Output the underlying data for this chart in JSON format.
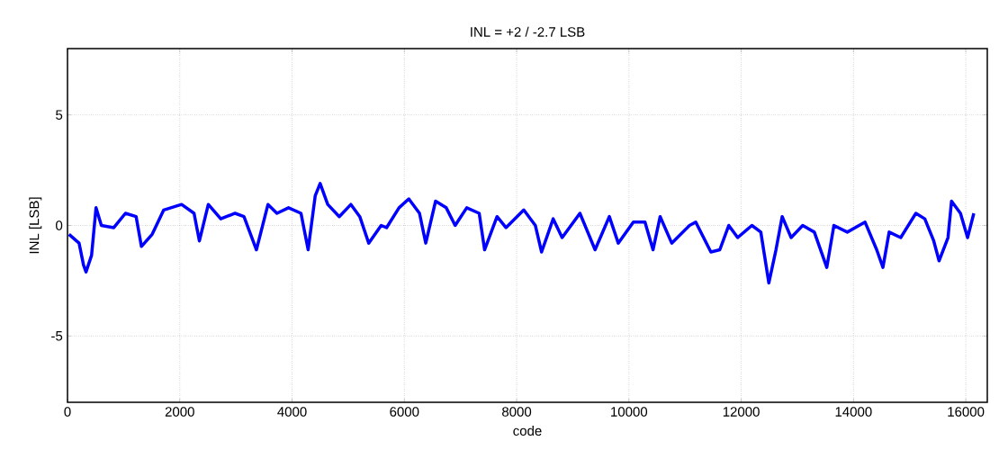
{
  "chart_data": {
    "type": "line",
    "title": "INL = +2 / -2.7 LSB",
    "xlabel": "code",
    "ylabel": "INL [LSB]",
    "xlim": [
      0,
      16383
    ],
    "ylim": [
      -8,
      8
    ],
    "xticks": [
      0,
      2000,
      4000,
      6000,
      8000,
      10000,
      12000,
      14000,
      16000
    ],
    "yticks": [
      -5,
      0,
      5
    ],
    "grid": true,
    "line_style": "solid",
    "marker": "none",
    "x": [
      27,
      206,
      286,
      330,
      429,
      508,
      603,
      825,
      1032,
      1222,
      1317,
      1508,
      1714,
      2032,
      2254,
      2349,
      2508,
      2730,
      2984,
      3143,
      3365,
      3571,
      3730,
      3937,
      4159,
      4286,
      4413,
      4500,
      4635,
      4841,
      5048,
      5206,
      5365,
      5587,
      5683,
      5905,
      6079,
      6270,
      6381,
      6556,
      6746,
      6905,
      7111,
      7333,
      7429,
      7651,
      7810,
      8127,
      8333,
      8444,
      8651,
      8810,
      9127,
      9397,
      9651,
      9810,
      10079,
      10286,
      10429,
      10556,
      10762,
      11079,
      11190,
      11460,
      11619,
      11778,
      11937,
      12190,
      12349,
      12492,
      12619,
      12730,
      12889,
      13095,
      13302,
      13524,
      13651,
      13889,
      14206,
      14413,
      14524,
      14635,
      14841,
      15111,
      15270,
      15429,
      15524,
      15683,
      15746,
      15905,
      16032,
      16143
    ],
    "series": [
      {
        "color": "#0000ff",
        "values": [
          -0.4,
          -0.8,
          -1.8,
          -2.1,
          -1.35,
          0.8,
          0,
          -0.1,
          0.55,
          0.4,
          -0.95,
          -0.4,
          0.7,
          0.95,
          0.55,
          -0.7,
          0.95,
          0.3,
          0.55,
          0.4,
          -1.1,
          0.95,
          0.55,
          0.8,
          0.55,
          -1.1,
          1.35,
          1.9,
          0.95,
          0.4,
          0.95,
          0.4,
          -0.8,
          0,
          -0.1,
          0.8,
          1.2,
          0.55,
          -0.8,
          1.1,
          0.8,
          0,
          0.8,
          0.55,
          -1.1,
          0.4,
          -0.1,
          0.7,
          0,
          -1.2,
          0.3,
          -0.55,
          0.55,
          -1.1,
          0.4,
          -0.8,
          0.15,
          0.15,
          -1.1,
          0.4,
          -0.8,
          0,
          0.15,
          -1.2,
          -1.1,
          0,
          -0.55,
          0,
          -0.3,
          -2.6,
          -1.1,
          0.4,
          -0.55,
          0,
          -0.3,
          -1.9,
          0,
          -0.3,
          0.15,
          -1.1,
          -1.9,
          -0.3,
          -0.55,
          0.55,
          0.3,
          -0.7,
          -1.6,
          -0.55,
          1.1,
          0.55,
          -0.55,
          0.55
        ]
      }
    ]
  }
}
